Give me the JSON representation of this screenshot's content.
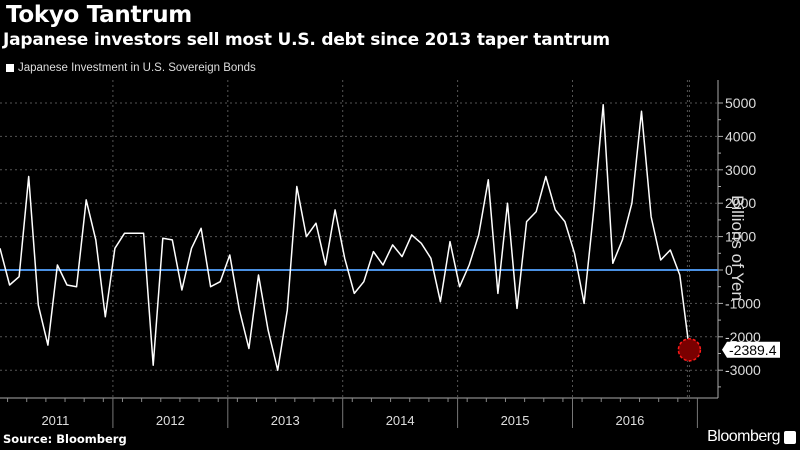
{
  "header": {
    "title": "Tokyo Tantrum",
    "subtitle": "Japanese investors sell most U.S. debt since 2013 taper tantrum"
  },
  "footer": {
    "source": "Source: Bloomberg",
    "brand": "Bloomberg"
  },
  "chart_data": {
    "type": "line",
    "title": "Tokyo Tantrum",
    "subtitle": "Japanese investors sell most U.S. debt since 2013 taper tantrum",
    "legend": [
      "Japanese Investment in U.S. Sovereign Bonds"
    ],
    "legend_position": "top-left",
    "xlabel": "",
    "ylabel": "Billions of Yen",
    "x_ticks": [
      "2011",
      "2012",
      "2013",
      "2014",
      "2015",
      "2016"
    ],
    "y_ticks": [
      5000,
      4000,
      3000,
      2000,
      1000,
      0,
      -1000,
      -2000,
      -3000
    ],
    "ylim": [
      -3750,
      5500
    ],
    "grid": true,
    "reference_line": {
      "value": 0,
      "color": "#4a90e2"
    },
    "line_color": "#ffffff",
    "highlight": {
      "label": "-2389.4",
      "value": -2389.4,
      "color": "#b30000"
    },
    "series": [
      {
        "name": "Japanese Investment in U.S. Sovereign Bonds",
        "values": [
          650,
          -450,
          -200,
          2800,
          -1050,
          -2250,
          150,
          -450,
          -500,
          2100,
          900,
          -1400,
          650,
          1100,
          1100,
          1100,
          -2850,
          950,
          900,
          -600,
          650,
          1250,
          -500,
          -350,
          450,
          -1200,
          -2350,
          -150,
          -1800,
          -3000,
          -1200,
          2500,
          1000,
          1400,
          150,
          1800,
          350,
          -700,
          -350,
          550,
          150,
          750,
          400,
          1050,
          800,
          350,
          -950,
          850,
          -500,
          150,
          1050,
          2700,
          -700,
          2000,
          -1150,
          1450,
          1750,
          2800,
          1800,
          1450,
          500,
          -1000,
          1750,
          4950,
          200,
          900,
          2000,
          4750,
          1600,
          300,
          600,
          -150,
          -2389.4
        ]
      }
    ]
  }
}
